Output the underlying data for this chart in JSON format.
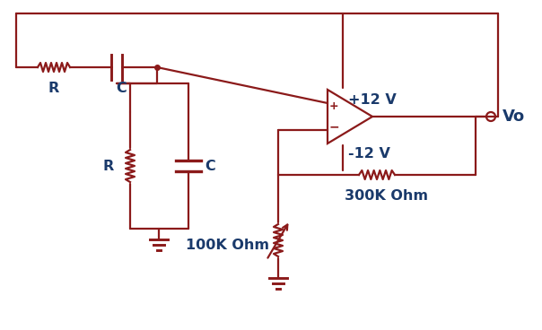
{
  "bg_color": "#ffffff",
  "line_color": "#8B1A1A",
  "text_color": "#1a3a6b",
  "figsize": [
    6.04,
    3.68
  ],
  "dpi": 100,
  "labels": {
    "R_series": "R",
    "C_series": "C",
    "R_parallel": "R",
    "C_parallel": "C",
    "plus12": "+12 V",
    "minus12": "-12 V",
    "R1": "100K Ohm",
    "R2": "300K Ohm",
    "Vo": "Vo"
  }
}
